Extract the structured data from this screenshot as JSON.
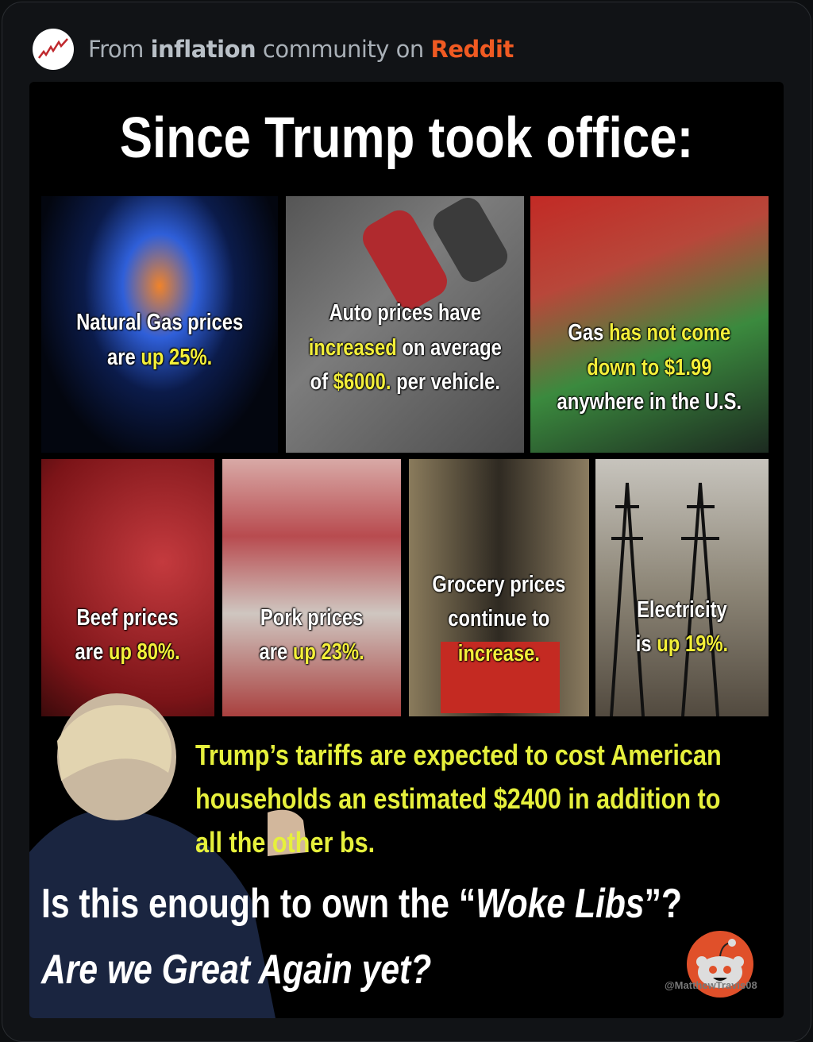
{
  "header": {
    "prefix": "From ",
    "community": "inflation",
    "middle": " community on ",
    "platform": "Reddit",
    "icon": "inflation-chart-icon"
  },
  "post_image": {
    "title": "Since Trump took office:",
    "panels": [
      {
        "name": "natural-gas",
        "segments": [
          [
            "Natural Gas prices",
            false
          ],
          [
            "\n",
            false
          ],
          [
            "are ",
            false
          ],
          [
            "up 25%.",
            true
          ]
        ]
      },
      {
        "name": "auto",
        "segments": [
          [
            "Auto prices have",
            false
          ],
          [
            "\n",
            false
          ],
          [
            "increased",
            true
          ],
          [
            " on average",
            false
          ],
          [
            "\n",
            false
          ],
          [
            "of ",
            false
          ],
          [
            "$6000.",
            true
          ],
          [
            " per vehicle.",
            false
          ]
        ]
      },
      {
        "name": "gas",
        "segments": [
          [
            "Gas ",
            false
          ],
          [
            "has not come",
            true
          ],
          [
            "\n",
            false
          ],
          [
            "down to $1.99",
            true
          ],
          [
            "\n",
            false
          ],
          [
            "anywhere in the U.S.",
            false
          ]
        ]
      },
      {
        "name": "beef",
        "segments": [
          [
            "Beef prices",
            false
          ],
          [
            "\n",
            false
          ],
          [
            "are ",
            false
          ],
          [
            "up 80%.",
            true
          ]
        ]
      },
      {
        "name": "pork",
        "segments": [
          [
            "Pork prices",
            false
          ],
          [
            "\n",
            false
          ],
          [
            "are ",
            false
          ],
          [
            "up 23%.",
            true
          ]
        ]
      },
      {
        "name": "grocery",
        "segments": [
          [
            "Grocery prices",
            false
          ],
          [
            "\n",
            false
          ],
          [
            "continue to",
            false
          ],
          [
            "\n",
            false
          ],
          [
            "increase.",
            true
          ]
        ]
      },
      {
        "name": "electricity",
        "segments": [
          [
            "Electricity",
            false
          ],
          [
            "\n",
            false
          ],
          [
            "is ",
            false
          ],
          [
            "up 19%.",
            true
          ]
        ]
      }
    ],
    "tariff_lines": [
      "Trump’s tariffs are expected to cost American",
      "households an estimated $2400 in addition to",
      "all the other bs."
    ],
    "question_prefix": "Is this enough to own the “",
    "question_emph": "Woke Libs",
    "question_suffix": "”?",
    "question2": "Are we Great Again yet?",
    "watermark": "@MatthewTravis08",
    "colors": {
      "highlight": "#f3ef3a",
      "tariff_text": "#e6f03c",
      "reddit": "#f05a22"
    }
  }
}
